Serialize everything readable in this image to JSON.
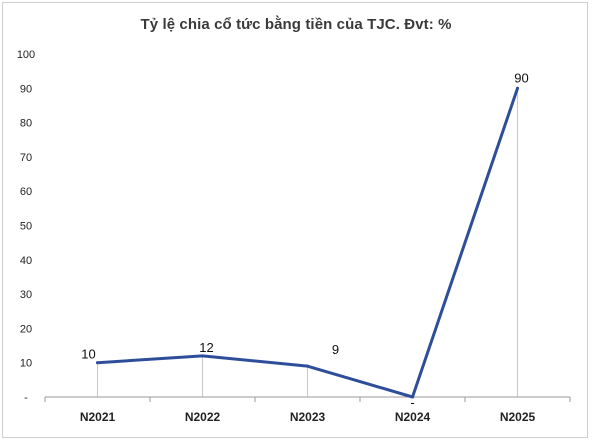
{
  "chart_data": {
    "type": "line",
    "title": "Tỷ lệ chia cổ tức bằng tiền của TJC. Đvt: %",
    "categories": [
      "N2021",
      "N2022",
      "N2023",
      "N2024",
      "N2025"
    ],
    "series": [
      {
        "values": [
          10,
          12,
          9,
          0,
          90
        ],
        "color": "#2e4e9a"
      }
    ],
    "data_labels": [
      "10",
      "12",
      "9",
      "-",
      "90"
    ],
    "y_tick_labels": [
      "-",
      "10",
      "20",
      "30",
      "40",
      "50",
      "60",
      "70",
      "80",
      "90",
      "100"
    ],
    "ylim": [
      0,
      100
    ],
    "ystep": 10,
    "grid": false,
    "legend": "none",
    "colors": {
      "line": "#2e4e9a",
      "axis": "#9a9a9a",
      "drop": "#c8c8c8"
    }
  }
}
